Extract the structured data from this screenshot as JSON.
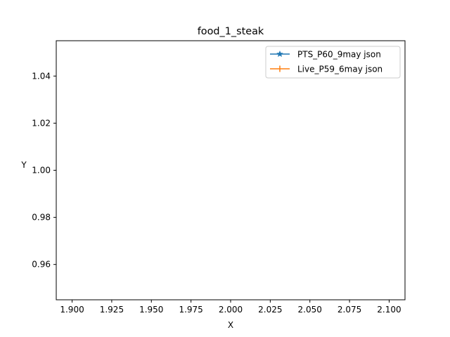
{
  "chart_data": {
    "type": "line",
    "title": "food_1_steak",
    "xlabel": "X",
    "ylabel": "Y",
    "xlim": [
      1.89,
      2.11
    ],
    "ylim": [
      0.945,
      1.055
    ],
    "x_ticks": [
      1.9,
      1.925,
      1.95,
      1.975,
      2.0,
      2.025,
      2.05,
      2.075,
      2.1
    ],
    "x_tick_labels": [
      "1.900",
      "1.925",
      "1.950",
      "1.975",
      "2.000",
      "2.025",
      "2.050",
      "2.075",
      "2.100"
    ],
    "y_ticks": [
      0.96,
      0.98,
      1.0,
      1.02,
      1.04
    ],
    "y_tick_labels": [
      "0.96",
      "0.98",
      "1.00",
      "1.02",
      "1.04"
    ],
    "grid": false,
    "legend_position": "top-right",
    "series": [
      {
        "name": "PTS_P60_9may json",
        "color": "#1f77b4",
        "marker": "star",
        "x": [],
        "y": []
      },
      {
        "name": "Live_P59_6may json",
        "color": "#ff7f0e",
        "marker": "plus",
        "x": [],
        "y": []
      }
    ]
  }
}
